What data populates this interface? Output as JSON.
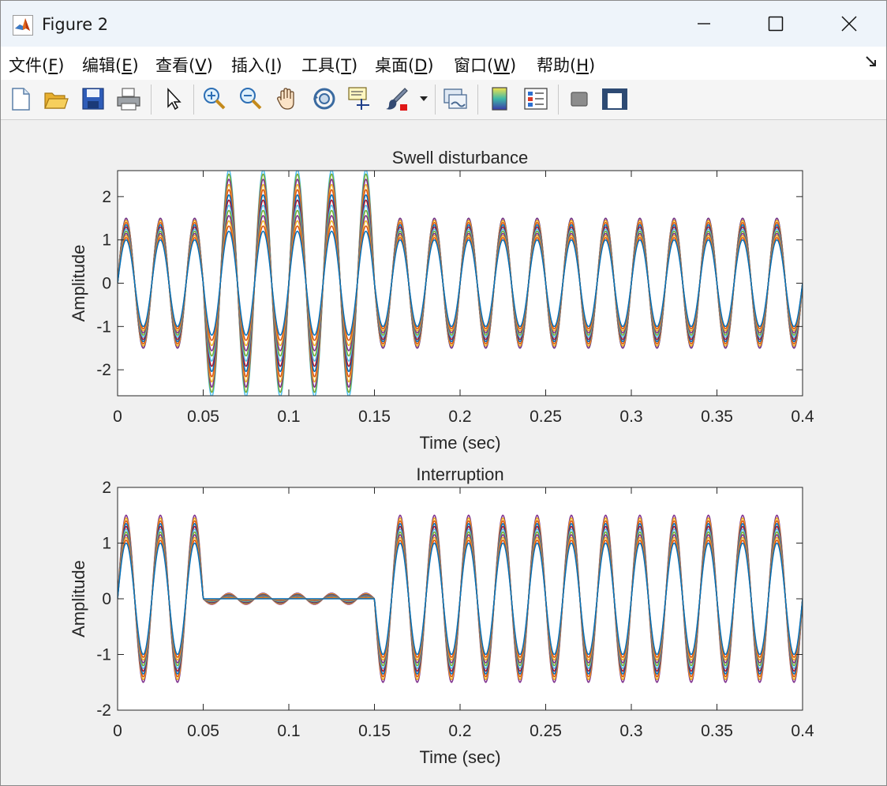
{
  "window": {
    "title": "Figure 2",
    "minimize_glyph": "—",
    "maximize_glyph": "☐",
    "close_glyph": "✕"
  },
  "menu": [
    {
      "pre": "文件(",
      "key": "F",
      "post": ")"
    },
    {
      "pre": "编辑(",
      "key": "E",
      "post": ")"
    },
    {
      "pre": "查看(",
      "key": "V",
      "post": ")"
    },
    {
      "pre": "插入(",
      "key": "I",
      "post": ")"
    },
    {
      "pre": "工具(",
      "key": "T",
      "post": ")"
    },
    {
      "pre": "桌面(",
      "key": "D",
      "post": ")"
    },
    {
      "pre": "窗口(",
      "key": "W",
      "post": ")"
    },
    {
      "pre": "帮助(",
      "key": "H",
      "post": ")"
    }
  ],
  "toolbar_icons": [
    "new-figure-icon",
    "open-file-icon",
    "save-icon",
    "print-icon",
    "pointer-icon",
    "zoom-in-icon",
    "zoom-out-icon",
    "pan-hand-icon",
    "rotate-3d-icon",
    "data-cursor-icon",
    "brush-icon",
    "brush-dropdown-icon",
    "link-plot-icon",
    "colorbar-icon",
    "legend-icon",
    "hide-plot-tools-icon",
    "show-plot-tools-icon"
  ],
  "chart_data": [
    {
      "type": "line",
      "title": "Swell disturbance",
      "xlabel": "Time (sec)",
      "ylabel": "Amplitude",
      "xlim": [
        0,
        0.4
      ],
      "ylim": [
        -2.6,
        2.6
      ],
      "xticks": [
        0,
        0.05,
        0.1,
        0.15,
        0.2,
        0.25,
        0.3,
        0.35,
        0.4
      ],
      "xtick_labels": [
        "0",
        "0.05",
        "0.1",
        "0.15",
        "0.2",
        "0.25",
        "0.3",
        "0.35",
        "0.4"
      ],
      "yticks": [
        -2,
        -1,
        0,
        1,
        2
      ],
      "ytick_labels": [
        "-2",
        "-1",
        "0",
        "1",
        "2"
      ],
      "frequency_hz": 50,
      "disturbance_window": [
        0.05,
        0.15
      ],
      "normal_amplitudes": [
        1.0,
        1.05,
        1.1,
        1.15,
        1.2,
        1.25,
        1.3,
        1.35,
        1.4,
        1.45,
        1.5
      ],
      "disturbed_amplitudes": [
        1.2,
        1.32,
        1.44,
        1.56,
        1.68,
        1.8,
        1.92,
        2.04,
        2.16,
        2.28,
        2.4,
        2.52,
        2.62
      ],
      "grid": false
    },
    {
      "type": "line",
      "title": "Interruption",
      "xlabel": "Time (sec)",
      "ylabel": "Amplitude",
      "xlim": [
        0,
        0.4
      ],
      "ylim": [
        -2,
        2
      ],
      "xticks": [
        0,
        0.05,
        0.1,
        0.15,
        0.2,
        0.25,
        0.3,
        0.35,
        0.4
      ],
      "xtick_labels": [
        "0",
        "0.05",
        "0.1",
        "0.15",
        "0.2",
        "0.25",
        "0.3",
        "0.35",
        "0.4"
      ],
      "yticks": [
        -2,
        -1,
        0,
        1,
        2
      ],
      "ytick_labels": [
        "-2",
        "-1",
        "0",
        "1",
        "2"
      ],
      "frequency_hz": 50,
      "disturbance_window": [
        0.05,
        0.15
      ],
      "normal_amplitudes": [
        1.0,
        1.05,
        1.1,
        1.15,
        1.2,
        1.25,
        1.3,
        1.35,
        1.4,
        1.45,
        1.5
      ],
      "disturbed_amplitudes": [
        0.0,
        0.01,
        0.02,
        0.03,
        0.04,
        0.05,
        0.06,
        0.07,
        0.08,
        0.09,
        0.1
      ],
      "grid": false
    }
  ],
  "series_colors": [
    "#0072BD",
    "#D95319",
    "#EDB120",
    "#7E2F8E",
    "#77AC30",
    "#4DBEEE",
    "#A2142F"
  ]
}
